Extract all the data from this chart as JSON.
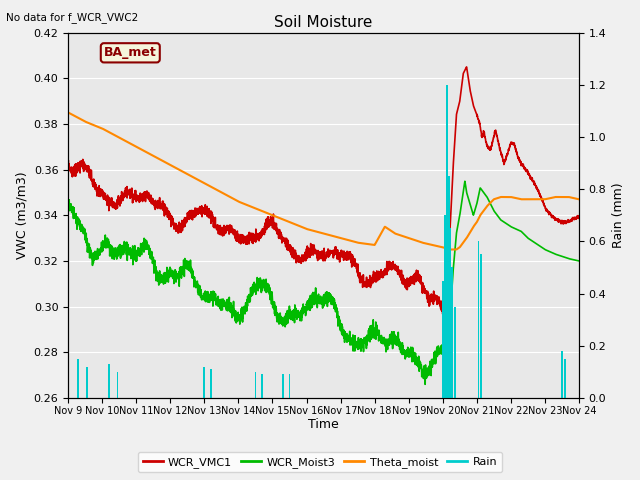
{
  "title": "Soil Moisture",
  "subtitle": "No data for f_WCR_VWC2",
  "xlabel": "Time",
  "ylabel_left": "VWC (m3/m3)",
  "ylabel_right": "Rain (mm)",
  "ylim_left": [
    0.26,
    0.42
  ],
  "ylim_right": [
    0.0,
    1.4
  ],
  "yticks_left": [
    0.26,
    0.28,
    0.3,
    0.32,
    0.34,
    0.36,
    0.38,
    0.4,
    0.42
  ],
  "yticks_right": [
    0.0,
    0.2,
    0.4,
    0.6,
    0.8,
    1.0,
    1.2,
    1.4
  ],
  "xlim": [
    0,
    15
  ],
  "xtick_labels": [
    "Nov 9",
    "Nov 10",
    "Nov 11",
    "Nov 12",
    "Nov 13",
    "Nov 14",
    "Nov 15",
    "Nov 16",
    "Nov 17",
    "Nov 18",
    "Nov 19",
    "Nov 20",
    "Nov 21",
    "Nov 22",
    "Nov 23",
    "Nov 24"
  ],
  "plot_bg": "#e8e8e8",
  "fig_bg": "#f0f0f0",
  "annotation_text": "BA_met",
  "annotation_color": "#8b0000",
  "annotation_bg": "#f5f5dc",
  "legend_entries": [
    "WCR_VMC1",
    "WCR_Moist3",
    "Theta_moist",
    "Rain"
  ],
  "line_colors": [
    "#cc0000",
    "#00bb00",
    "#ff8800",
    "#00cccc"
  ]
}
